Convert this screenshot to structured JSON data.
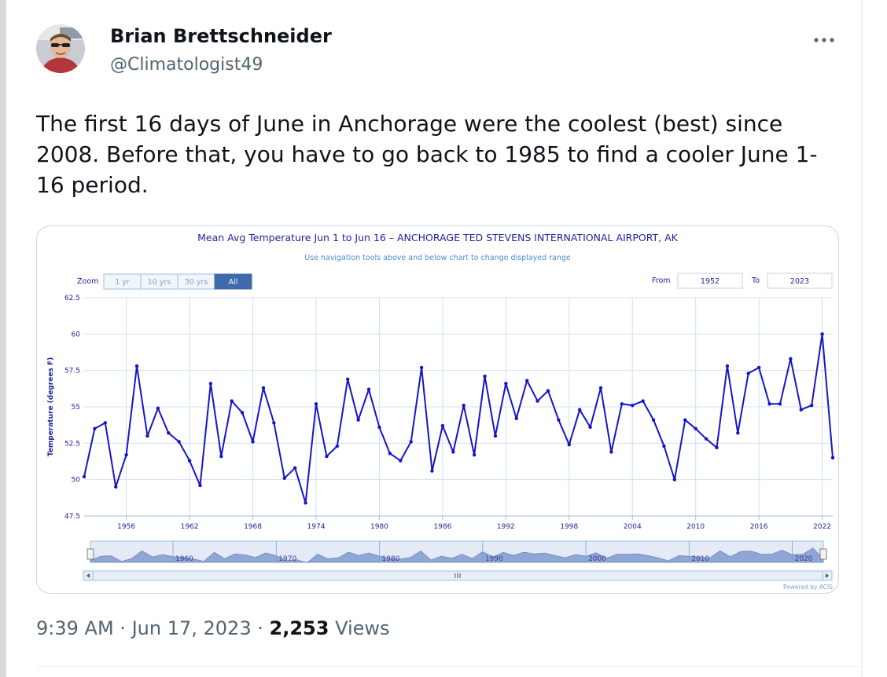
{
  "tweet": {
    "display_name": "Brian Brettschneider",
    "handle": "@Climatologist49",
    "more_icon": "ellipsis-icon",
    "text": "The first 16 days of June in Anchorage were the coolest (best) since 2008. Before that, you have to go back to 1985 to find a cooler June 1-16 period.",
    "time": "9:39 AM",
    "date": "Jun 17, 2023",
    "views_count": "2,253",
    "views_label": "Views",
    "separator": "·"
  },
  "chart_data": {
    "type": "line",
    "title": "Mean Avg Temperature Jun 1 to Jun 16 – ANCHORAGE TED STEVENS INTERNATIONAL AIRPORT, AK",
    "subtitle": "Use navigation tools above and below chart to change displayed range",
    "xlabel": "",
    "ylabel": "Temperature (degrees F)",
    "ylim": [
      47.5,
      62.5
    ],
    "yticks": [
      "62.5",
      "60",
      "57.5",
      "55",
      "52.5",
      "50",
      "47.5"
    ],
    "xlim": [
      1952,
      2023
    ],
    "xticks": [
      "1956",
      "1962",
      "1968",
      "1974",
      "1980",
      "1986",
      "1992",
      "1998",
      "2004",
      "2010",
      "2016",
      "2022"
    ],
    "grid": true,
    "line_color": "#1515c8",
    "zoom": {
      "label": "Zoom",
      "buttons": [
        "1 yr",
        "10 yrs",
        "30 yrs",
        "All"
      ],
      "active": "All"
    },
    "range": {
      "from_label": "From",
      "from": "1952",
      "to_label": "To",
      "to": "2023"
    },
    "navigator_ticks": [
      "1960",
      "1970",
      "1980",
      "1990",
      "2000",
      "2010",
      "2020"
    ],
    "credit": "Powered by ACIS",
    "series": [
      {
        "x": [
          1952,
          1953,
          1954,
          1955,
          1956,
          1957,
          1958,
          1959,
          1960,
          1961,
          1962,
          1963,
          1964,
          1965,
          1966,
          1967,
          1968,
          1969,
          1970,
          1971,
          1972,
          1973,
          1974,
          1975,
          1976,
          1977,
          1978,
          1979,
          1980,
          1981,
          1982,
          1983,
          1984,
          1985,
          1986,
          1987,
          1988,
          1989,
          1990,
          1991,
          1992,
          1993,
          1994,
          1995,
          1996,
          1997,
          1998,
          1999,
          2000,
          2001,
          2002,
          2003,
          2004,
          2005,
          2006,
          2007,
          2008,
          2009,
          2010,
          2011,
          2012,
          2013,
          2014,
          2015,
          2016,
          2017,
          2018,
          2019,
          2020,
          2021,
          2022,
          2023
        ],
        "y": [
          50.2,
          53.5,
          53.9,
          49.5,
          51.7,
          57.8,
          53.0,
          54.9,
          53.2,
          52.6,
          51.3,
          49.6,
          56.6,
          51.6,
          55.4,
          54.6,
          52.6,
          56.3,
          53.9,
          50.1,
          50.8,
          48.4,
          55.2,
          51.6,
          52.3,
          56.9,
          54.1,
          56.2,
          53.6,
          51.8,
          51.3,
          52.6,
          57.7,
          50.6,
          53.7,
          51.9,
          55.1,
          51.7,
          57.1,
          53.0,
          56.6,
          54.2,
          56.8,
          55.4,
          56.1,
          54.1,
          52.4,
          54.8,
          53.6,
          56.3,
          51.9,
          55.2,
          55.1,
          55.4,
          54.1,
          52.3,
          50.0,
          54.1,
          53.5,
          52.8,
          52.2,
          57.8,
          53.2,
          57.3,
          57.7,
          55.2,
          55.2,
          58.3,
          54.8,
          55.1,
          60.0,
          51.5
        ]
      }
    ]
  }
}
